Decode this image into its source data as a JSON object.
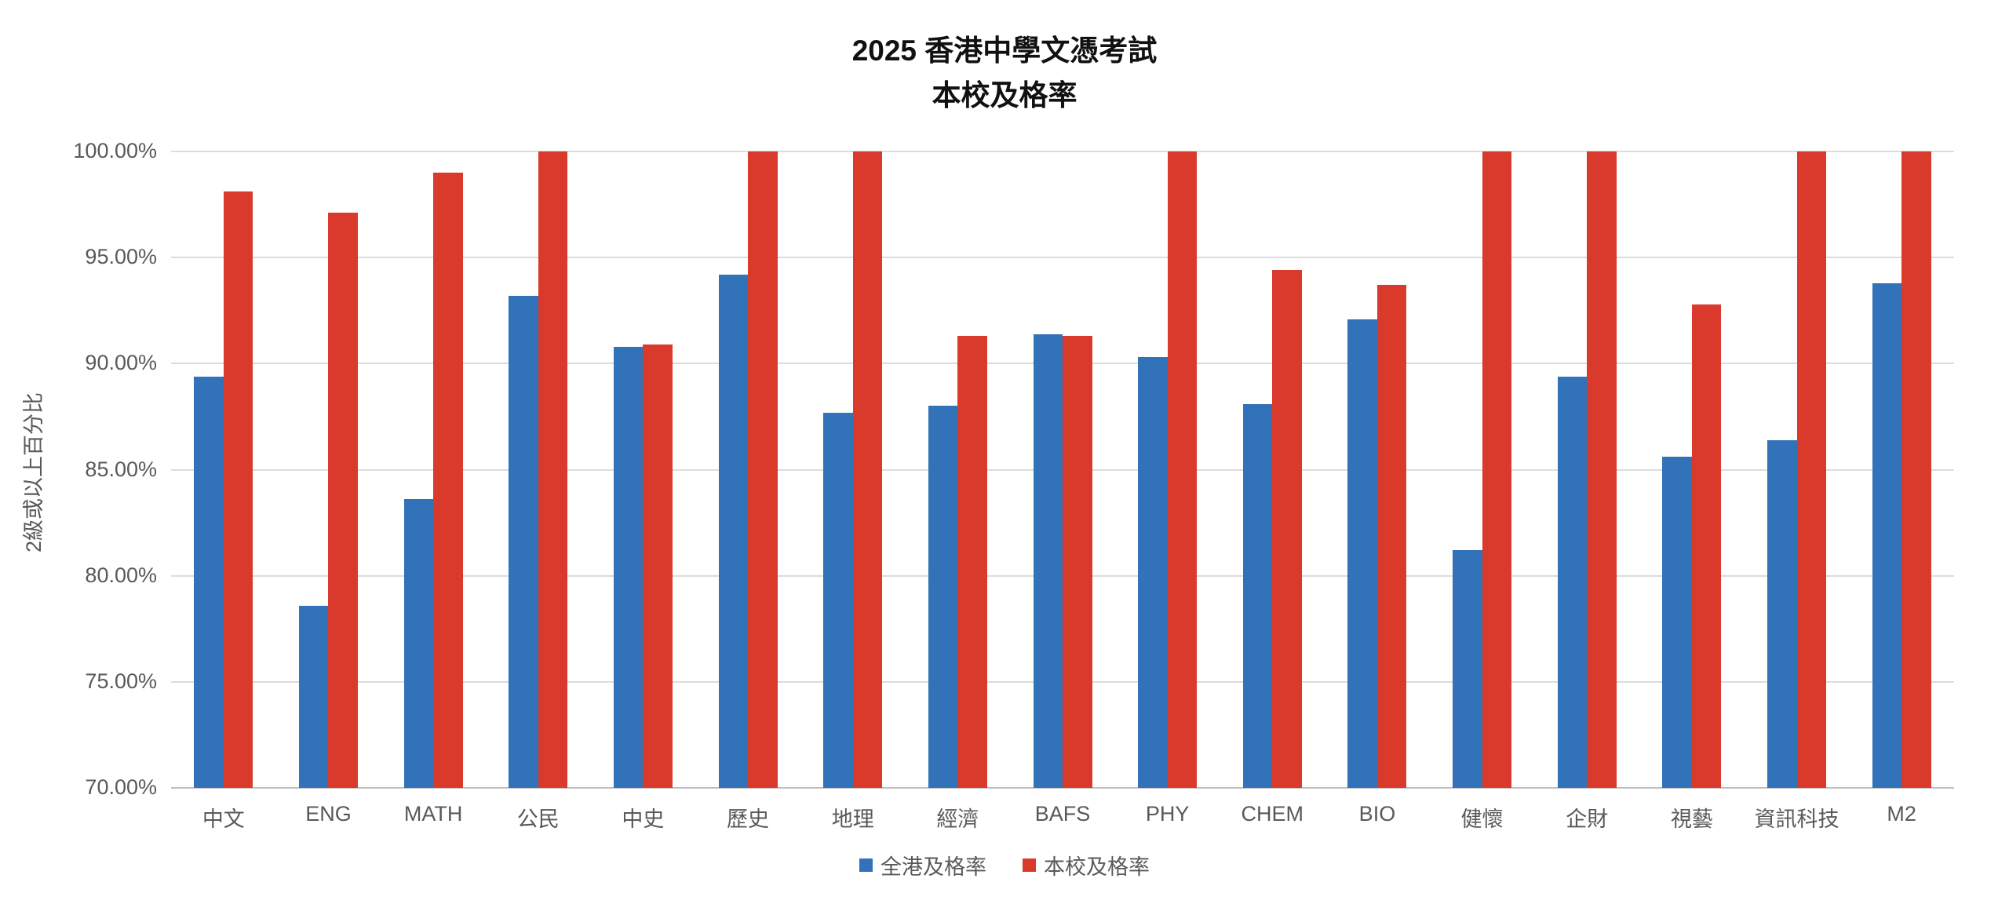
{
  "title": {
    "line1": "2025 香港中學文憑考試",
    "line2": "本校及格率"
  },
  "colors": {
    "series_blue": "#3172B8",
    "series_red": "#D93A2B",
    "axis_text": "#595959",
    "gridline": "#DCDCDC"
  },
  "chart_data": {
    "type": "bar",
    "title": "2025 香港中學文憑考試 本校及格率",
    "categories": [
      "中文",
      "ENG",
      "MATH",
      "公民",
      "中史",
      "歷史",
      "地理",
      "經濟",
      "BAFS",
      "PHY",
      "CHEM",
      "BIO",
      "健懷",
      "企財",
      "視藝",
      "資訊科技",
      "M2"
    ],
    "series": [
      {
        "name": "全港及格率",
        "color": "#3172B8",
        "values": [
          89.4,
          78.6,
          83.6,
          93.2,
          90.8,
          94.2,
          87.7,
          88.0,
          91.4,
          90.3,
          88.1,
          92.1,
          81.2,
          89.4,
          85.6,
          86.4,
          93.8
        ]
      },
      {
        "name": "本校及格率",
        "color": "#D93A2B",
        "values": [
          98.1,
          97.1,
          99.0,
          100.0,
          90.9,
          100.0,
          100.0,
          91.3,
          91.3,
          100.0,
          94.4,
          93.7,
          100.0,
          100.0,
          92.8,
          100.0,
          100.0
        ]
      }
    ],
    "xlabel": "",
    "ylabel": "2級或以上百分比",
    "ylim": [
      70,
      100
    ],
    "ytick_step": 5,
    "ytick_labels": [
      "70.00%",
      "75.00%",
      "80.00%",
      "85.00%",
      "90.00%",
      "95.00%",
      "100.00%"
    ],
    "grid": true,
    "legend_position": "bottom"
  }
}
